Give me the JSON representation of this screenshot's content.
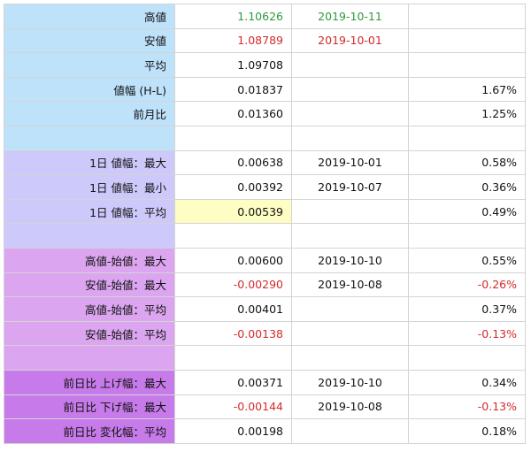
{
  "rows": [
    {
      "label": "高値",
      "value": "1.10626",
      "value_color": "green",
      "date": "2019-10-11",
      "date_color": "green",
      "pct": "",
      "pct_color": "",
      "group": 1
    },
    {
      "label": "安値",
      "value": "1.08789",
      "value_color": "red",
      "date": "2019-10-01",
      "date_color": "red",
      "pct": "",
      "pct_color": "",
      "group": 1
    },
    {
      "label": "平均",
      "value": "1.09708",
      "value_color": "",
      "date": "",
      "date_color": "",
      "pct": "",
      "pct_color": "",
      "group": 1
    },
    {
      "label": "値幅 (H-L)",
      "value": "0.01837",
      "value_color": "",
      "date": "",
      "date_color": "",
      "pct": "1.67%",
      "pct_color": "",
      "group": 1
    },
    {
      "label": "前月比",
      "value": "0.01360",
      "value_color": "",
      "date": "",
      "date_color": "",
      "pct": "1.25%",
      "pct_color": "",
      "group": 1
    },
    {
      "label": "",
      "value": "",
      "value_color": "",
      "date": "",
      "date_color": "",
      "pct": "",
      "pct_color": "",
      "group": 1
    },
    {
      "label": "1日 値幅：最大",
      "value": "0.00638",
      "value_color": "",
      "date": "2019-10-01",
      "date_color": "",
      "pct": "0.58%",
      "pct_color": "",
      "group": 2
    },
    {
      "label": "1日 値幅：最小",
      "value": "0.00392",
      "value_color": "",
      "date": "2019-10-07",
      "date_color": "",
      "pct": "0.36%",
      "pct_color": "",
      "group": 2
    },
    {
      "label": "1日 値幅：平均",
      "value": "0.00539",
      "value_color": "",
      "date": "",
      "date_color": "",
      "pct": "0.49%",
      "pct_color": "",
      "group": 2,
      "highlight": true
    },
    {
      "label": "",
      "value": "",
      "value_color": "",
      "date": "",
      "date_color": "",
      "pct": "",
      "pct_color": "",
      "group": 2
    },
    {
      "label": "高値-始値：最大",
      "value": "0.00600",
      "value_color": "",
      "date": "2019-10-10",
      "date_color": "",
      "pct": "0.55%",
      "pct_color": "",
      "group": 3
    },
    {
      "label": "安値-始値：最大",
      "value": "-0.00290",
      "value_color": "red",
      "date": "2019-10-08",
      "date_color": "",
      "pct": "-0.26%",
      "pct_color": "red",
      "group": 3
    },
    {
      "label": "高値-始値：平均",
      "value": "0.00401",
      "value_color": "",
      "date": "",
      "date_color": "",
      "pct": "0.37%",
      "pct_color": "",
      "group": 3
    },
    {
      "label": "安値-始値：平均",
      "value": "-0.00138",
      "value_color": "red",
      "date": "",
      "date_color": "",
      "pct": "-0.13%",
      "pct_color": "red",
      "group": 3
    },
    {
      "label": "",
      "value": "",
      "value_color": "",
      "date": "",
      "date_color": "",
      "pct": "",
      "pct_color": "",
      "group": 3
    },
    {
      "label": "前日比 上げ幅：最大",
      "value": "0.00371",
      "value_color": "",
      "date": "2019-10-10",
      "date_color": "",
      "pct": "0.34%",
      "pct_color": "",
      "group": 4
    },
    {
      "label": "前日比 下げ幅：最大",
      "value": "-0.00144",
      "value_color": "red",
      "date": "2019-10-08",
      "date_color": "",
      "pct": "-0.13%",
      "pct_color": "red",
      "group": 4
    },
    {
      "label": "前日比 変化幅：平均",
      "value": "0.00198",
      "value_color": "",
      "date": "",
      "date_color": "",
      "pct": "0.18%",
      "pct_color": "",
      "group": 4
    }
  ],
  "colors": {
    "group1": "#bfe2fb",
    "group2": "#cdc9fb",
    "group3": "#dba5ef",
    "group4": "#c77ae9",
    "green": "#2e9a3c",
    "red": "#d42a2a",
    "highlight": "#fdfdc4"
  }
}
